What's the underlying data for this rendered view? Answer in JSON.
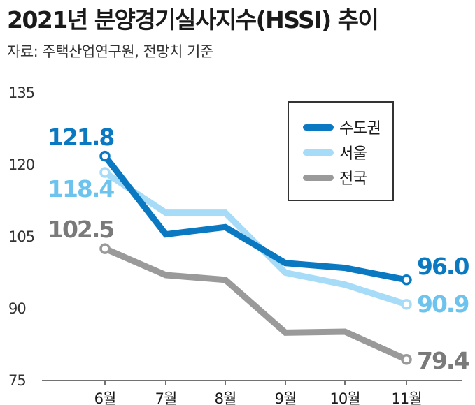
{
  "title": "2021년 분양경기실사지수(HSSI) 추이",
  "source": "자료: 주택산업연구원, 전망치 기준",
  "chart_data": {
    "type": "line",
    "title": "2021년 분양경기실사지수(HSSI) 추이",
    "categories": [
      "6월",
      "7월",
      "8월",
      "9월",
      "10월",
      "11월"
    ],
    "yticks": [
      "135",
      "120",
      "105",
      "90",
      "75"
    ],
    "ylim": [
      75,
      135
    ],
    "legend_position": "top-right",
    "series": [
      {
        "name": "전국",
        "color": "#9a9a9a",
        "label_color": "#7a7a7a",
        "values": [
          102.5,
          97.0,
          96.0,
          85.0,
          85.2,
          79.4
        ],
        "start_label": "102.5",
        "end_label": "79.4"
      },
      {
        "name": "서울",
        "color": "#a6dcf7",
        "label_color": "#6cc3ee",
        "values": [
          118.4,
          110.0,
          110.0,
          97.5,
          95.0,
          90.9
        ],
        "start_label": "118.4",
        "end_label": "90.9"
      },
      {
        "name": "수도권",
        "color": "#0a79c2",
        "label_color": "#0a79c2",
        "values": [
          121.8,
          105.5,
          107.0,
          99.5,
          98.5,
          96.0
        ],
        "start_label": "121.8",
        "end_label": "96.0"
      }
    ],
    "legend_order": [
      "수도권",
      "서울",
      "전국"
    ]
  }
}
